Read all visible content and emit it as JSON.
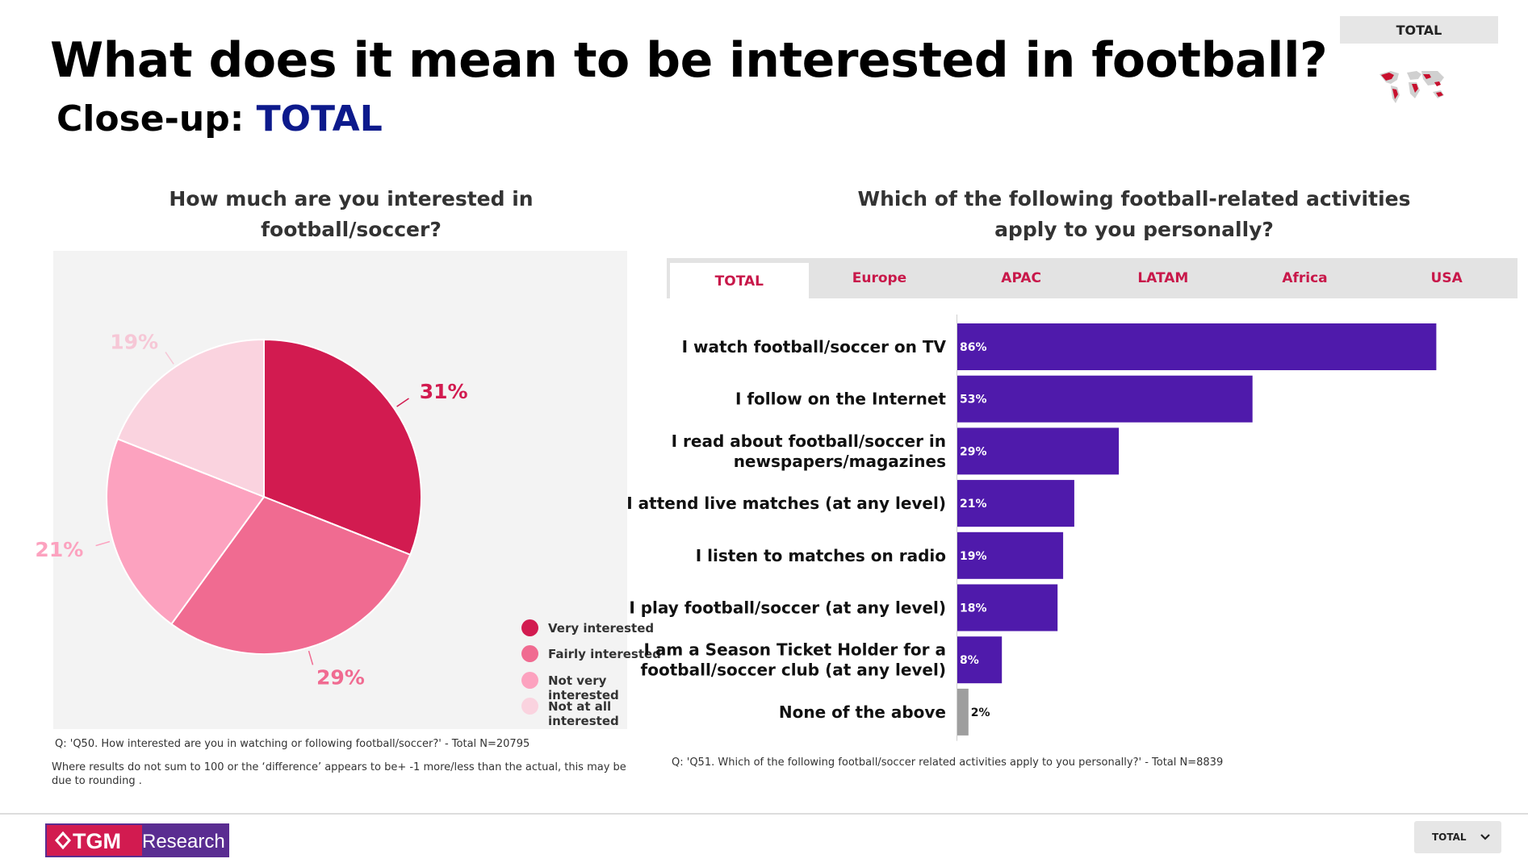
{
  "header": {
    "title": "What does it mean to be interested in football?",
    "subtitle_prefix": "Close-up: ",
    "subtitle_highlight": "TOTAL",
    "region_chip": "TOTAL"
  },
  "pie_section": {
    "question": "How much are you interested in football/soccer?",
    "note_question": "Q: 'Q50. How interested are you in watching or following football/soccer?' - Total N=20795",
    "note_rounding": "Where results do not sum to 100 or the ‘difference’ appears to be+ -1 more/less than the actual, this may be due to rounding ."
  },
  "bar_section": {
    "question": "Which of the following football-related activities apply to you personally?",
    "tabs": [
      "TOTAL",
      "Europe",
      "APAC",
      "LATAM",
      "Africa",
      "USA"
    ],
    "active_tab": "TOTAL",
    "note_question": "Q: 'Q51. Which of the following football/soccer related activities apply to you personally?' - Total N=8839"
  },
  "chart_data": [
    {
      "type": "pie",
      "labels": [
        "Very interested",
        "Fairly interested",
        "Not very interested",
        "Not at all interested"
      ],
      "values": [
        31,
        29,
        21,
        19
      ],
      "data_labels": [
        "31%",
        "29%",
        "21%",
        "19%"
      ],
      "colors": [
        "#d21b50",
        "#f06b91",
        "#fca2bf",
        "#fad3df"
      ],
      "legend_position": "bottom-right"
    },
    {
      "type": "bar",
      "orientation": "horizontal",
      "categories": [
        "I watch football/soccer on TV",
        "I follow on the Internet",
        "I read about football/soccer in newspapers/magazines",
        "I attend live matches (at any level)",
        "I listen to matches on radio",
        "I play football/soccer (at any level)",
        "I am a Season Ticket Holder for a football/soccer club (at any level)",
        "None of the above"
      ],
      "category_lines": [
        [
          "I watch football/soccer on TV"
        ],
        [
          "I follow on the Internet"
        ],
        [
          "I read about football/soccer in",
          "newspapers/magazines"
        ],
        [
          "I attend live matches (at any level)"
        ],
        [
          "I listen to matches on radio"
        ],
        [
          "I play football/soccer (at any level)"
        ],
        [
          "I am a Season Ticket Holder for a",
          "football/soccer club (at any level)"
        ],
        [
          "None of the above"
        ]
      ],
      "values": [
        86,
        53,
        29,
        21,
        19,
        18,
        8,
        2
      ],
      "data_labels": [
        "86%",
        "53%",
        "29%",
        "21%",
        "19%",
        "18%",
        "8%",
        "2%"
      ],
      "colors": [
        "#4f1aab",
        "#4f1aab",
        "#4f1aab",
        "#4f1aab",
        "#4f1aab",
        "#4f1aab",
        "#4f1aab",
        "#9e9e9e"
      ],
      "xlim": [
        0,
        100
      ]
    }
  ],
  "footer": {
    "logo_part1": "TGM",
    "logo_part2": "Research",
    "select_value": "TOTAL"
  }
}
